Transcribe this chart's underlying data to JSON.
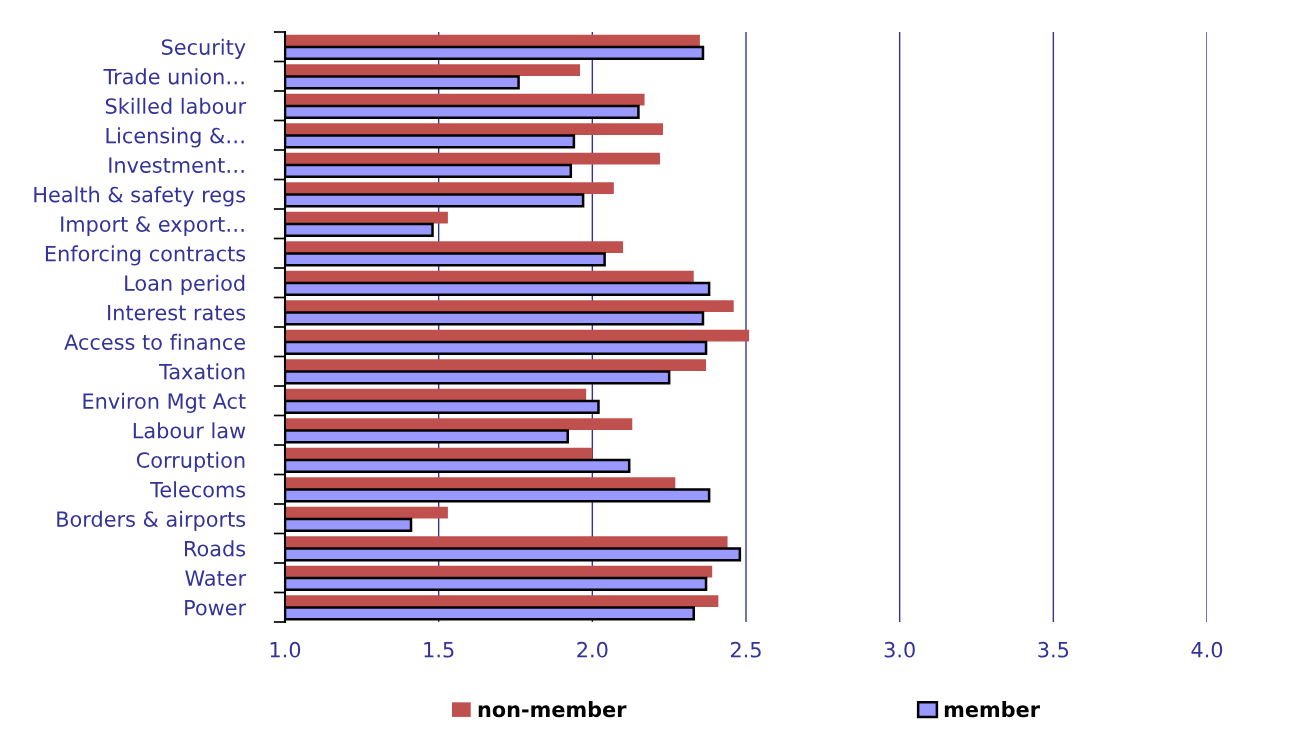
{
  "chart_data": {
    "type": "bar",
    "orientation": "horizontal",
    "categories": [
      "Security",
      "Trade union…",
      "Skilled labour",
      "Licensing &…",
      "Investment…",
      "Health & safety regs",
      "Import & export…",
      "Enforcing contracts",
      "Loan period",
      "Interest rates",
      "Access to finance",
      "Taxation",
      "Environ Mgt Act",
      "Labour law",
      "Corruption",
      "Telecoms",
      "Borders & airports",
      "Roads",
      "Water",
      "Power"
    ],
    "series": [
      {
        "name": "non-member",
        "color": "#c0504d",
        "values": [
          2.35,
          1.96,
          2.17,
          2.23,
          2.22,
          2.07,
          1.53,
          2.1,
          2.33,
          2.46,
          2.51,
          2.37,
          1.98,
          2.13,
          2.0,
          2.27,
          1.53,
          2.44,
          2.39,
          2.41
        ]
      },
      {
        "name": "member",
        "color": "#9999ff",
        "values": [
          2.36,
          1.76,
          2.15,
          1.94,
          1.93,
          1.97,
          1.48,
          2.04,
          2.38,
          2.36,
          2.37,
          2.25,
          2.02,
          1.92,
          2.12,
          2.38,
          1.41,
          2.48,
          2.37,
          2.33
        ]
      }
    ],
    "xlim": [
      1,
      4.0
    ],
    "xticks": [
      {
        "value": 1,
        "label": "1.0"
      },
      {
        "value": 1.5,
        "label": "1.5"
      },
      {
        "value": 2,
        "label": "2.0"
      },
      {
        "value": 2.5,
        "label": "2.5"
      },
      {
        "value": 3,
        "label": "3.0"
      },
      {
        "value": 3.5,
        "label": "3.5"
      },
      {
        "value": 4,
        "label": "4.0"
      }
    ],
    "grid": "x",
    "legend": "bottom"
  }
}
